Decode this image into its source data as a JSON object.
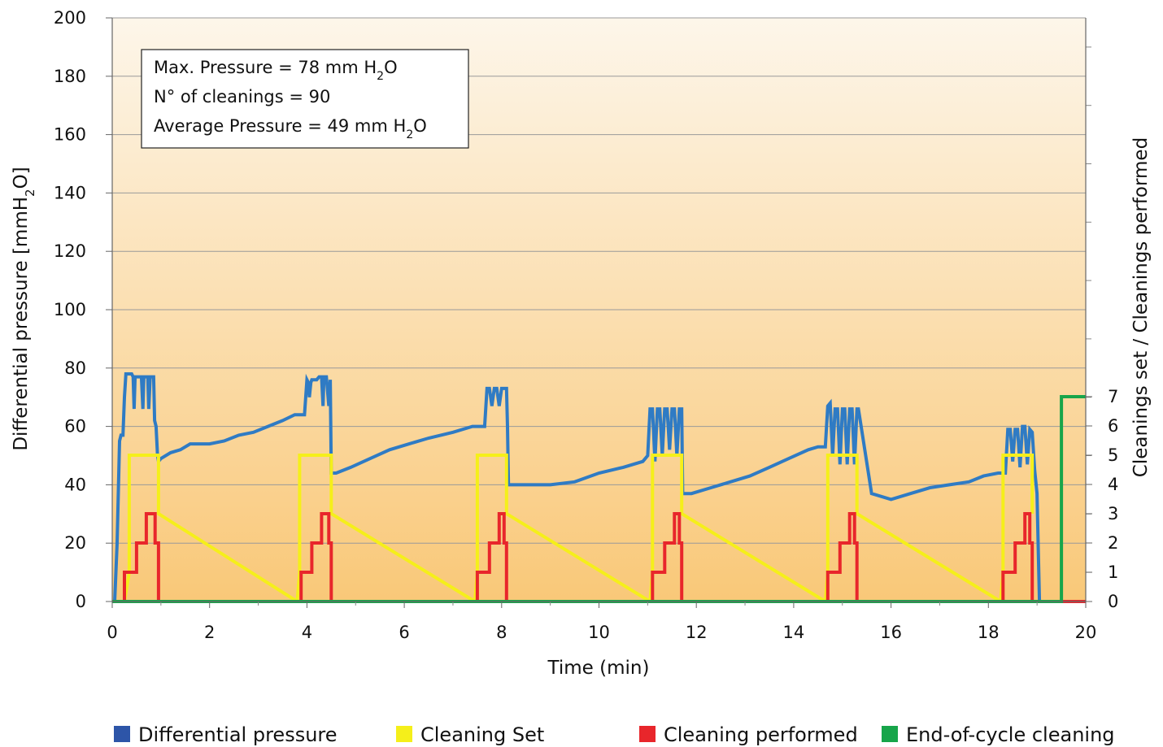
{
  "chart_data": {
    "type": "line",
    "xlabel": "Time (min)",
    "ylabel_left_parts": [
      "Differential pressure [mmH",
      "2",
      "O]"
    ],
    "ylabel_right": "Cleanings set / Cleanings performed",
    "xlim": [
      0,
      20
    ],
    "ylim_left": [
      0,
      200
    ],
    "ylim_right": [
      0,
      7
    ],
    "x_ticks": [
      0,
      2,
      4,
      6,
      8,
      10,
      12,
      14,
      16,
      18,
      20
    ],
    "y_left_ticks": [
      0,
      20,
      40,
      60,
      80,
      100,
      120,
      140,
      160,
      180,
      200
    ],
    "y_right_ticks": [
      0,
      1,
      2,
      3,
      4,
      5,
      6,
      7
    ],
    "grid": true,
    "background_gradient": [
      "#fdf6ea",
      "#f9c878"
    ],
    "annotation": {
      "line1_parts": [
        "Max. Pressure = 78 mm H",
        "2",
        "O"
      ],
      "line2": "N° of cleanings = 90",
      "line3_parts": [
        "Average Pressure = 49 mm H",
        "2",
        "O"
      ]
    },
    "legend": [
      {
        "label": "Differential pressure",
        "color": "#2d55a8"
      },
      {
        "label": "Cleaning Set",
        "color": "#f5ef1a"
      },
      {
        "label": "Cleaning performed",
        "color": "#e8262b"
      },
      {
        "label": "End-of-cycle cleaning",
        "color": "#17a54a"
      }
    ],
    "series": [
      {
        "name": "Differential pressure",
        "axis": "left",
        "color": "#2f7bc4",
        "x": [
          0.05,
          0.1,
          0.15,
          0.18,
          0.22,
          0.25,
          0.28,
          0.3,
          0.35,
          0.4,
          0.43,
          0.45,
          0.47,
          0.5,
          0.53,
          0.6,
          0.63,
          0.65,
          0.67,
          0.7,
          0.73,
          0.75,
          0.78,
          0.8,
          0.83,
          0.85,
          0.87,
          0.9,
          0.93,
          0.95,
          1.0,
          1.0,
          1.2,
          1.4,
          1.6,
          2.0,
          2.3,
          2.6,
          2.9,
          3.2,
          3.5,
          3.75,
          3.8,
          3.85,
          3.9,
          3.95,
          4.0,
          4.03,
          4.05,
          4.08,
          4.1,
          4.15,
          4.2,
          4.25,
          4.3,
          4.33,
          4.35,
          4.38,
          4.4,
          4.45,
          4.48,
          4.5,
          4.6,
          4.9,
          5.3,
          5.7,
          6.1,
          6.5,
          7.0,
          7.4,
          7.6,
          7.65,
          7.7,
          7.75,
          7.8,
          7.85,
          7.9,
          7.95,
          8.0,
          8.05,
          8.1,
          8.12,
          8.14,
          8.16,
          8.5,
          9.0,
          9.5,
          10.0,
          10.5,
          10.9,
          11.0,
          11.05,
          11.1,
          11.15,
          11.2,
          11.25,
          11.3,
          11.35,
          11.4,
          11.45,
          11.5,
          11.55,
          11.6,
          11.65,
          11.7,
          11.72,
          11.9,
          12.3,
          12.7,
          13.1,
          13.5,
          13.9,
          14.3,
          14.5,
          14.6,
          14.65,
          14.7,
          14.75,
          14.8,
          14.85,
          14.9,
          14.95,
          15.0,
          15.05,
          15.1,
          15.15,
          15.2,
          15.25,
          15.3,
          15.33,
          15.6,
          16.0,
          16.4,
          16.8,
          17.2,
          17.6,
          17.9,
          18.2,
          18.3,
          18.35,
          18.4,
          18.45,
          18.5,
          18.55,
          18.6,
          18.65,
          18.7,
          18.75,
          18.8,
          18.85,
          18.9,
          18.95,
          19.0,
          19.02,
          19.05,
          19.1
        ],
        "y": [
          0,
          20,
          55,
          57,
          57,
          70,
          78,
          78,
          78,
          78,
          77,
          66,
          77,
          77,
          77,
          77,
          66,
          77,
          77,
          77,
          77,
          66,
          77,
          77,
          77,
          77,
          62,
          60,
          50,
          48,
          49,
          49,
          51,
          52,
          54,
          54,
          55,
          57,
          58,
          60,
          62,
          64,
          64,
          64,
          64,
          64,
          76,
          75,
          70,
          75,
          76,
          76,
          76,
          77,
          77,
          67,
          77,
          77,
          77,
          67,
          76,
          44,
          44,
          46,
          49,
          52,
          54,
          56,
          58,
          60,
          60,
          60,
          73,
          73,
          67,
          73,
          73,
          67,
          73,
          73,
          73,
          60,
          40,
          40,
          40,
          40,
          41,
          44,
          46,
          48,
          50,
          66,
          66,
          48,
          66,
          66,
          50,
          66,
          66,
          52,
          66,
          66,
          50,
          66,
          66,
          37,
          37,
          39,
          41,
          43,
          46,
          49,
          52,
          53,
          53,
          53,
          67,
          68,
          50,
          66,
          66,
          47,
          66,
          66,
          47,
          66,
          66,
          47,
          66,
          66,
          37,
          35,
          37,
          39,
          40,
          41,
          43,
          44,
          44,
          44,
          59,
          59,
          48,
          59,
          59,
          46,
          60,
          60,
          47,
          59,
          58,
          45,
          37,
          22,
          0,
          0
        ]
      },
      {
        "name": "Cleaning Set",
        "axis": "right",
        "color": "#f5ef1a",
        "x": [
          0.15,
          0.25,
          0.35,
          0.35,
          0.95,
          0.95,
          3.8,
          3.85,
          3.85,
          4.5,
          4.5,
          7.45,
          7.5,
          7.5,
          8.1,
          8.1,
          11.05,
          11.1,
          11.1,
          11.7,
          11.7,
          14.65,
          14.7,
          14.7,
          15.3,
          15.3,
          18.25,
          18.3,
          18.3,
          18.9,
          18.9
        ],
        "y": [
          0,
          0,
          1,
          5,
          5,
          3,
          0,
          1,
          5,
          5,
          3,
          0,
          1,
          5,
          5,
          3,
          0,
          1,
          5,
          5,
          3,
          0,
          1,
          5,
          5,
          3,
          0,
          1,
          5,
          5,
          3
        ]
      },
      {
        "name": "Cleaning performed",
        "axis": "right",
        "color": "#e8262b",
        "x": [
          0,
          0.25,
          0.25,
          0.5,
          0.5,
          0.7,
          0.7,
          0.88,
          0.88,
          0.95,
          0.95,
          3.88,
          3.88,
          4.1,
          4.1,
          4.3,
          4.3,
          4.45,
          4.45,
          4.5,
          4.5,
          7.5,
          7.5,
          7.75,
          7.75,
          7.95,
          7.95,
          8.05,
          8.05,
          8.1,
          8.1,
          11.1,
          11.1,
          11.35,
          11.35,
          11.55,
          11.55,
          11.65,
          11.65,
          11.7,
          11.7,
          14.7,
          14.7,
          14.95,
          14.95,
          15.15,
          15.15,
          15.25,
          15.25,
          15.3,
          15.3,
          18.3,
          18.3,
          18.55,
          18.55,
          18.75,
          18.75,
          18.85,
          18.85,
          18.9,
          18.9,
          20
        ],
        "y": [
          0,
          0,
          1,
          1,
          2,
          2,
          3,
          3,
          2,
          2,
          0,
          0,
          1,
          1,
          2,
          2,
          3,
          3,
          2,
          2,
          0,
          0,
          1,
          1,
          2,
          2,
          3,
          3,
          2,
          2,
          0,
          0,
          1,
          1,
          2,
          2,
          3,
          3,
          2,
          2,
          0,
          0,
          1,
          1,
          2,
          2,
          3,
          3,
          2,
          2,
          0,
          0,
          1,
          1,
          2,
          2,
          3,
          3,
          2,
          2,
          0,
          0
        ]
      },
      {
        "name": "End-of-cycle cleaning",
        "axis": "right",
        "color": "#17a54a",
        "x": [
          0,
          19.5,
          19.5,
          20
        ],
        "y": [
          0,
          0,
          7,
          7
        ]
      }
    ]
  }
}
